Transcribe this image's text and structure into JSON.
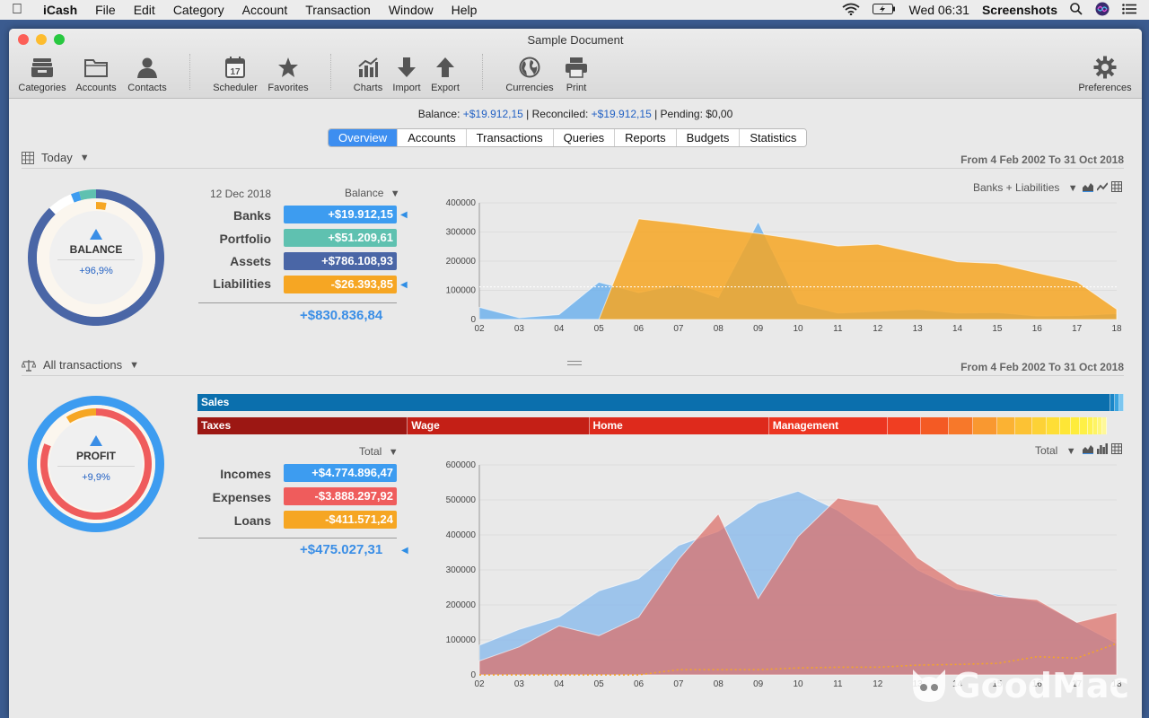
{
  "menubar": {
    "app": "iCash",
    "items": [
      "File",
      "Edit",
      "Category",
      "Account",
      "Transaction",
      "Window",
      "Help"
    ],
    "clock": "Wed 06:31",
    "screenshots": "Screenshots"
  },
  "window": {
    "title": "Sample Document"
  },
  "toolbar": {
    "categories": "Categories",
    "accounts": "Accounts",
    "contacts": "Contacts",
    "scheduler": "Scheduler",
    "scheduler_day": "17",
    "favorites": "Favorites",
    "charts": "Charts",
    "import": "Import",
    "export": "Export",
    "currencies": "Currencies",
    "print": "Print",
    "preferences": "Preferences"
  },
  "status": {
    "balance_label": "Balance:",
    "balance": "+$19.912,15",
    "reconciled_label": "| Reconciled:",
    "reconciled": "+$19.912,15",
    "pending": "| Pending: $0,00"
  },
  "tabs": [
    "Overview",
    "Accounts",
    "Transactions",
    "Queries",
    "Reports",
    "Budgets",
    "Statistics"
  ],
  "active_tab": "Overview",
  "balance_section": {
    "period_label": "Today",
    "range": "From 4 Feb 2002 To 31 Oct 2018",
    "date": "12 Dec 2018",
    "mode": "Balance",
    "donut_title": "BALANCE",
    "donut_pct": "+96,9%",
    "rows": [
      {
        "label": "Banks",
        "value": "+$19.912,15",
        "color": "#3d9cf0",
        "selected": true
      },
      {
        "label": "Portfolio",
        "value": "+$51.209,61",
        "color": "#5fc1b0",
        "selected": false
      },
      {
        "label": "Assets",
        "value": "+$786.108,93",
        "color": "#4a66a6",
        "selected": false
      },
      {
        "label": "Liabilities",
        "value": "-$26.393,85",
        "color": "#f6a623",
        "selected": true
      }
    ],
    "total": "+$830.836,84",
    "chart_selector": "Banks + Liabilities",
    "donut": {
      "outer": [
        {
          "name": "Assets",
          "fraction": 0.88,
          "color": "#4a66a6"
        },
        {
          "name": "Empty",
          "fraction": 0.06,
          "color": "#ffffff"
        },
        {
          "name": "Banks",
          "fraction": 0.02,
          "color": "#3d9cf0"
        },
        {
          "name": "Portfolio",
          "fraction": 0.04,
          "color": "#5fc1b0"
        }
      ],
      "inner": [
        {
          "name": "Liabilities",
          "fraction": 0.03,
          "color": "#f6a623"
        }
      ]
    }
  },
  "profit_section": {
    "period_label": "All transactions",
    "range": "From 4 Feb 2002 To 31 Oct 2018",
    "mode": "Total",
    "donut_title": "PROFIT",
    "donut_pct": "+9,9%",
    "rows": [
      {
        "label": "Incomes",
        "value": "+$4.774.896,47",
        "color": "#3d9cf0"
      },
      {
        "label": "Expenses",
        "value": "-$3.888.297,92",
        "color": "#ef5c5c"
      },
      {
        "label": "Loans",
        "value": "-$411.571,24",
        "color": "#f6a623"
      }
    ],
    "total": "+$475.027,31",
    "chart_selector": "Total",
    "income_bar": [
      {
        "label": "Sales",
        "fraction": 0.988,
        "color": "#0b6fad"
      },
      {
        "label": "",
        "fraction": 0.004,
        "color": "#1a86c8"
      },
      {
        "label": "",
        "fraction": 0.004,
        "color": "#3aa4e0"
      },
      {
        "label": "",
        "fraction": 0.004,
        "color": "#7cc6ef"
      }
    ],
    "expense_bar": [
      {
        "label": "Taxes",
        "fraction": 0.227,
        "color": "#9c1713",
        "text": true
      },
      {
        "label": "Wage",
        "fraction": 0.196,
        "color": "#c41f16",
        "text": true
      },
      {
        "label": "Home",
        "fraction": 0.194,
        "color": "#de2a1c",
        "text": true
      },
      {
        "label": "Management",
        "fraction": 0.128,
        "color": "#ec3521",
        "text": true
      },
      {
        "label": "",
        "fraction": 0.036,
        "color": "#f03e22"
      },
      {
        "label": "",
        "fraction": 0.03,
        "color": "#f45a24"
      },
      {
        "label": "",
        "fraction": 0.026,
        "color": "#f7782a"
      },
      {
        "label": "",
        "fraction": 0.026,
        "color": "#f99830"
      },
      {
        "label": "",
        "fraction": 0.02,
        "color": "#fbb233"
      },
      {
        "label": "",
        "fraction": 0.018,
        "color": "#fcc234"
      },
      {
        "label": "",
        "fraction": 0.016,
        "color": "#fdd236"
      },
      {
        "label": "",
        "fraction": 0.014,
        "color": "#fede36"
      },
      {
        "label": "",
        "fraction": 0.012,
        "color": "#fee636"
      },
      {
        "label": "",
        "fraction": 0.01,
        "color": "#feec3c"
      },
      {
        "label": "",
        "fraction": 0.008,
        "color": "#fef046"
      },
      {
        "label": "",
        "fraction": 0.006,
        "color": "#fef252"
      },
      {
        "label": "",
        "fraction": 0.005,
        "color": "#fef464"
      },
      {
        "label": "",
        "fraction": 0.004,
        "color": "#fef67a"
      },
      {
        "label": "",
        "fraction": 0.004,
        "color": "#fef89a"
      }
    ],
    "donut": {
      "outer": [
        {
          "name": "Incomes",
          "fraction": 1.0,
          "color": "#3d9cf0"
        }
      ],
      "inner": [
        {
          "name": "Expenses",
          "fraction": 0.81,
          "color": "#ef5c5c"
        },
        {
          "name": "Empty",
          "fraction": 0.1,
          "color": "#fbf6ee"
        },
        {
          "name": "Loans",
          "fraction": 0.09,
          "color": "#f6a623"
        }
      ]
    }
  },
  "chart_data": [
    {
      "type": "area",
      "categories": [
        "02",
        "03",
        "04",
        "05",
        "06",
        "07",
        "08",
        "09",
        "10",
        "11",
        "12",
        "13",
        "14",
        "15",
        "16",
        "17",
        "18"
      ],
      "ylim": [
        0,
        400000
      ],
      "yticks": [
        0,
        100000,
        200000,
        300000,
        400000
      ],
      "reference_line": 112000,
      "series": [
        {
          "name": "Banks",
          "color": "#6fb2ec",
          "values": [
            42000,
            6000,
            17000,
            128000,
            92000,
            120000,
            75000,
            335000,
            55000,
            22000,
            28000,
            35000,
            22000,
            24000,
            12000,
            14000,
            20000
          ]
        },
        {
          "name": "Liabilities",
          "color": "#f6a623",
          "values": [
            0,
            0,
            0,
            0,
            345000,
            330000,
            312000,
            295000,
            275000,
            252000,
            258000,
            228000,
            198000,
            192000,
            160000,
            130000,
            35000
          ]
        }
      ]
    },
    {
      "type": "area",
      "categories": [
        "02",
        "03",
        "04",
        "05",
        "06",
        "07",
        "08",
        "09",
        "10",
        "11",
        "12",
        "13",
        "14",
        "15",
        "16",
        "17",
        "18"
      ],
      "ylim": [
        0,
        600000
      ],
      "yticks": [
        0,
        100000,
        200000,
        300000,
        400000,
        500000,
        600000
      ],
      "series": [
        {
          "name": "Incomes",
          "color": "#7fb6eb",
          "values": [
            85000,
            130000,
            165000,
            240000,
            275000,
            370000,
            410000,
            490000,
            525000,
            470000,
            390000,
            300000,
            245000,
            230000,
            210000,
            150000,
            90000
          ]
        },
        {
          "name": "Expenses",
          "color": "#dd6e67",
          "values": [
            40000,
            80000,
            140000,
            112000,
            165000,
            330000,
            460000,
            218000,
            395000,
            505000,
            485000,
            335000,
            260000,
            225000,
            215000,
            150000,
            178000
          ]
        },
        {
          "name": "Loans",
          "color": "#f6a623",
          "values": [
            0,
            0,
            0,
            0,
            0,
            15000,
            15000,
            15000,
            20000,
            22000,
            22000,
            28000,
            30000,
            33000,
            52000,
            48000,
            90000
          ]
        }
      ]
    }
  ]
}
